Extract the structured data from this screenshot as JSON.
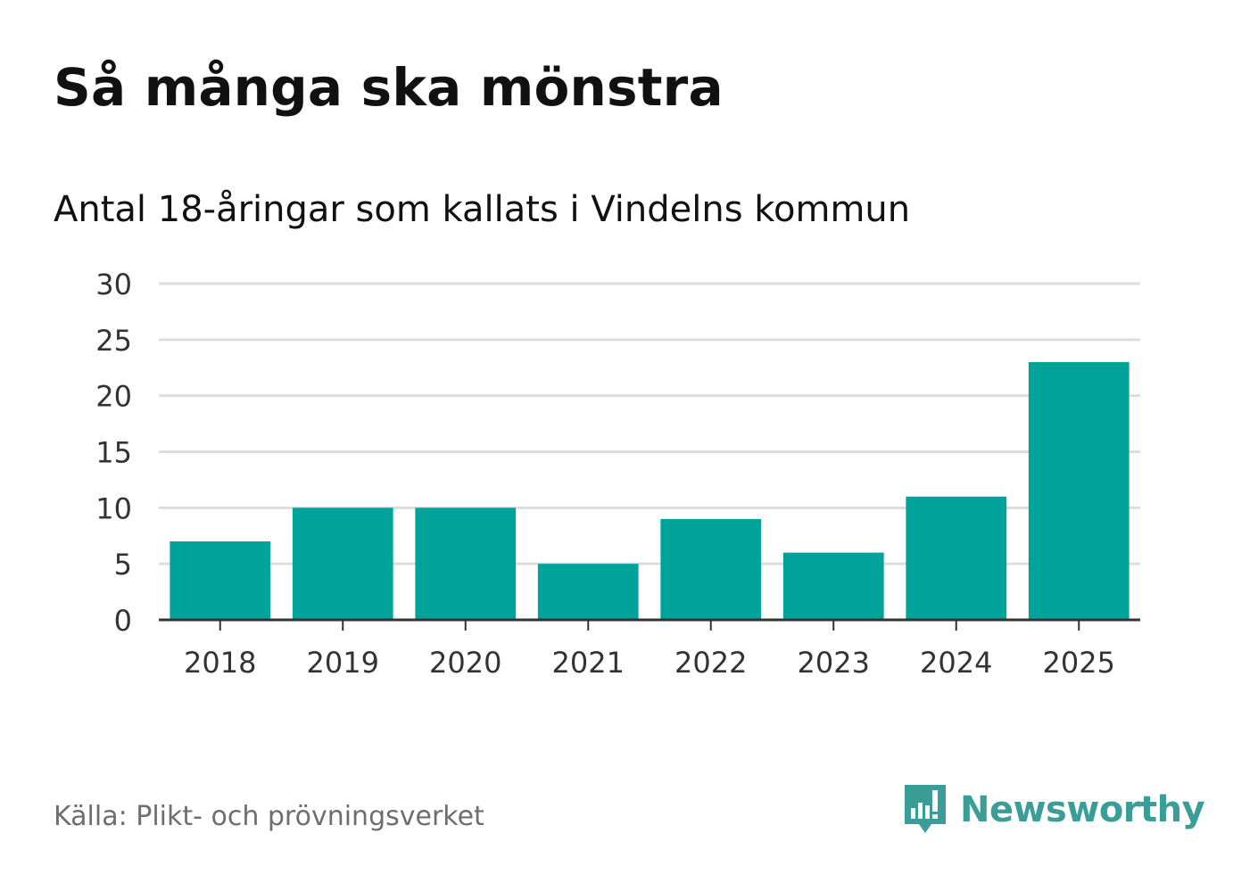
{
  "title": "Så många ska mönstra",
  "subtitle": "Antal 18-åringar som kallats i Vindelns kommun",
  "source": "Källa: Plikt- och prövningsverket",
  "brand": {
    "name": "Newsworthy",
    "icon": "newsworthy-logo-icon",
    "color": "#3a9d97"
  },
  "colors": {
    "bar": "#00a39a",
    "grid": "#dddddd",
    "axis": "#333333"
  },
  "chart_data": {
    "type": "bar",
    "title": "Så många ska mönstra",
    "subtitle": "Antal 18-åringar som kallats i Vindelns kommun",
    "xlabel": "",
    "ylabel": "",
    "categories": [
      "2018",
      "2019",
      "2020",
      "2021",
      "2022",
      "2023",
      "2024",
      "2025"
    ],
    "values": [
      7,
      10,
      10,
      5,
      9,
      6,
      11,
      23
    ],
    "ylim": [
      0,
      30
    ],
    "yticks": [
      0,
      5,
      10,
      15,
      20,
      25,
      30
    ],
    "grid": true
  }
}
